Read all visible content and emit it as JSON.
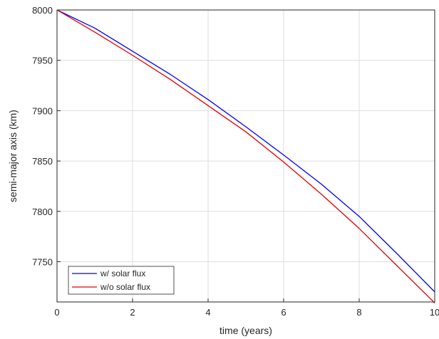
{
  "chart_data": {
    "type": "line",
    "title": "",
    "xlabel": "time (years)",
    "ylabel": "semi-major axis (km)",
    "xlim": [
      0,
      10
    ],
    "ylim": [
      7710,
      8000
    ],
    "xticks": [
      "0",
      "2",
      "4",
      "6",
      "8",
      "10"
    ],
    "yticks": [
      "7750",
      "7800",
      "7850",
      "7900",
      "7950",
      "8000"
    ],
    "grid": true,
    "legend_position": "bottom-left",
    "series": [
      {
        "name": "w/ solar flux",
        "color": "#0000ff",
        "x": [
          0,
          1,
          2,
          3,
          4,
          5,
          6,
          7,
          8,
          9,
          10
        ],
        "y": [
          8000,
          7982,
          7959,
          7936,
          7911,
          7884,
          7856,
          7827,
          7795,
          7758,
          7720
        ]
      },
      {
        "name": "w/o solar flux",
        "color": "#e00000",
        "x": [
          0,
          1,
          2,
          3,
          4,
          5,
          6,
          7,
          8,
          9,
          10
        ],
        "y": [
          8000,
          7978,
          7955,
          7931,
          7905,
          7879,
          7849,
          7817,
          7783,
          7746,
          7709
        ]
      }
    ]
  }
}
